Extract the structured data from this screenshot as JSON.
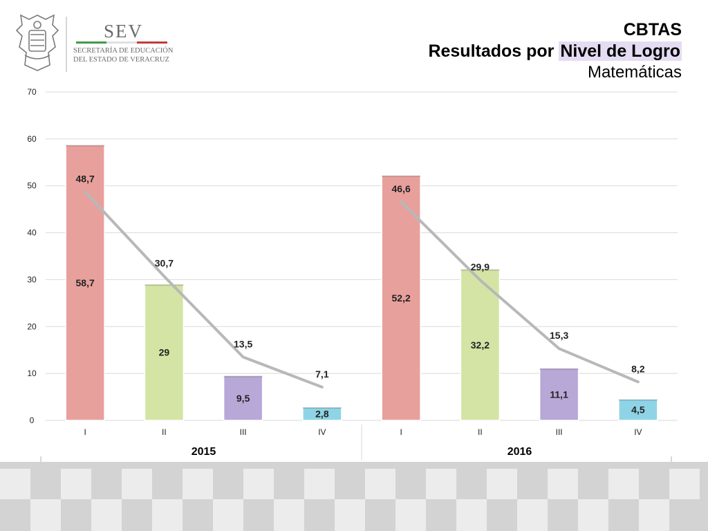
{
  "header": {
    "logo_name": "SEV",
    "logo_sub1": "SECRETARÍA DE EDUCACIÓN",
    "logo_sub2": "DEL ESTADO DE VERACRUZ",
    "title_line1": "CBTAS",
    "title_line2_a": "Resultados por ",
    "title_line2_b": "Nivel de Logro",
    "title_line3": "Matemáticas"
  },
  "colors": {
    "bar_I": "#e8a09c",
    "bar_II": "#d4e4a4",
    "bar_III": "#b8a8d8",
    "bar_IV": "#8fd4e6",
    "line": "#b8b8b8",
    "highlight": "#e4dcf2"
  },
  "chart_data": {
    "type": "bar",
    "title": "",
    "xlabel": "",
    "ylabel": "",
    "ylim": [
      0,
      70
    ],
    "yticks": [
      "0",
      "10",
      "20",
      "30",
      "40",
      "50",
      "60",
      "70"
    ],
    "grid": true,
    "groups": [
      {
        "name": "2015",
        "categories": [
          "I",
          "II",
          "III",
          "IV"
        ],
        "bar_values": [
          58.7,
          29,
          9.5,
          2.8
        ],
        "bar_labels": [
          "58,7",
          "29",
          "9,5",
          "2,8"
        ],
        "line_values": [
          48.7,
          30.7,
          13.5,
          7.1
        ],
        "line_labels": [
          "48,7",
          "30,7",
          "13,5",
          "7,1"
        ]
      },
      {
        "name": "2016",
        "categories": [
          "I",
          "II",
          "III",
          "IV"
        ],
        "bar_values": [
          52.2,
          32.2,
          11.1,
          4.5
        ],
        "bar_labels": [
          "52,2",
          "32,2",
          "11,1",
          "4,5"
        ],
        "line_values": [
          46.6,
          29.9,
          15.3,
          8.2
        ],
        "line_labels": [
          "46,6",
          "29,9",
          "15,3",
          "8,2"
        ]
      }
    ]
  }
}
